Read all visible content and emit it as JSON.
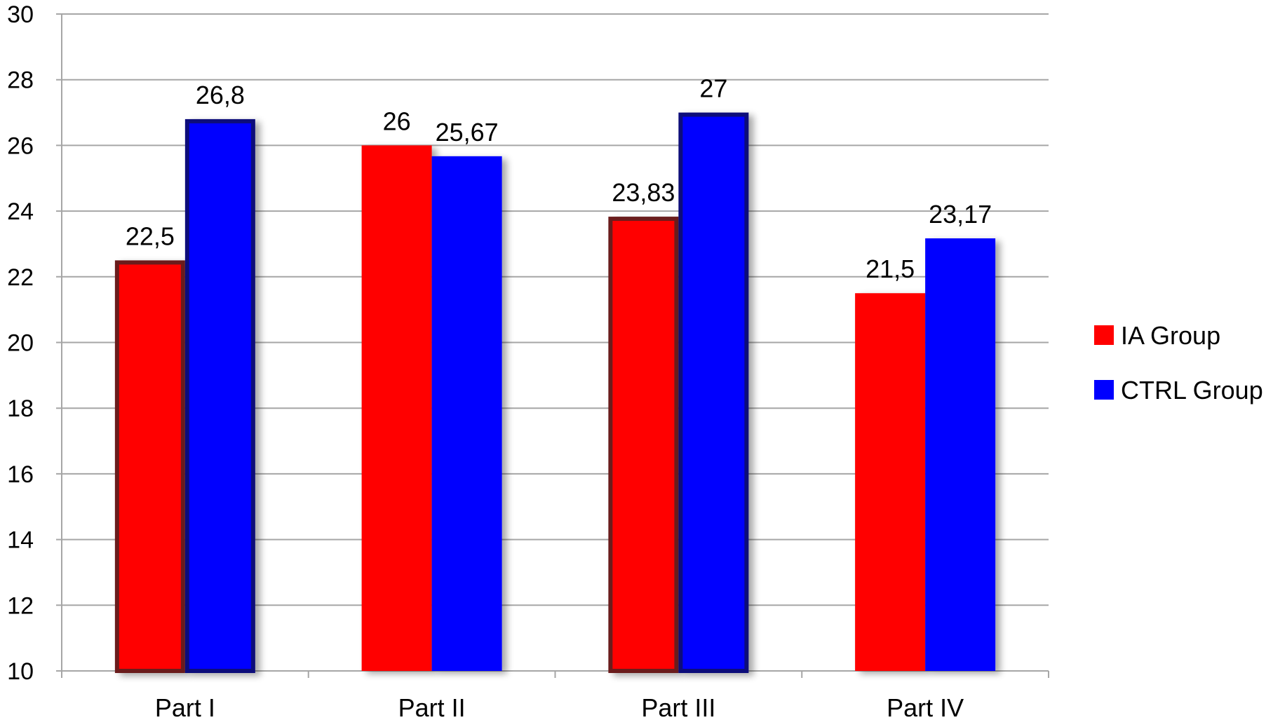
{
  "chart_data": {
    "type": "bar",
    "categories": [
      "Part I",
      "Part II",
      "Part III",
      "Part IV"
    ],
    "series": [
      {
        "name": "IA Group",
        "values": [
          22.5,
          26,
          23.83,
          21.5
        ],
        "labels": [
          "22,5",
          "26",
          "23,83",
          "21,5"
        ],
        "color": "#ff0000",
        "outlined": [
          true,
          false,
          true,
          false
        ],
        "outline_color": "#6b1f1f"
      },
      {
        "name": "CTRL Group",
        "values": [
          26.8,
          25.67,
          27,
          23.17
        ],
        "labels": [
          "26,8",
          "25,67",
          "27",
          "23,17"
        ],
        "color": "#0000ff",
        "outlined": [
          true,
          false,
          true,
          false
        ],
        "outline_color": "#0a0a7a"
      }
    ],
    "title": "",
    "xlabel": "",
    "ylabel": "",
    "ylim": [
      10,
      30
    ],
    "yticks": [
      "10",
      "12",
      "14",
      "16",
      "18",
      "20",
      "22",
      "24",
      "26",
      "28",
      "30"
    ],
    "grid": true,
    "grid_color": "#a6a6a6",
    "legend_position": "right"
  }
}
